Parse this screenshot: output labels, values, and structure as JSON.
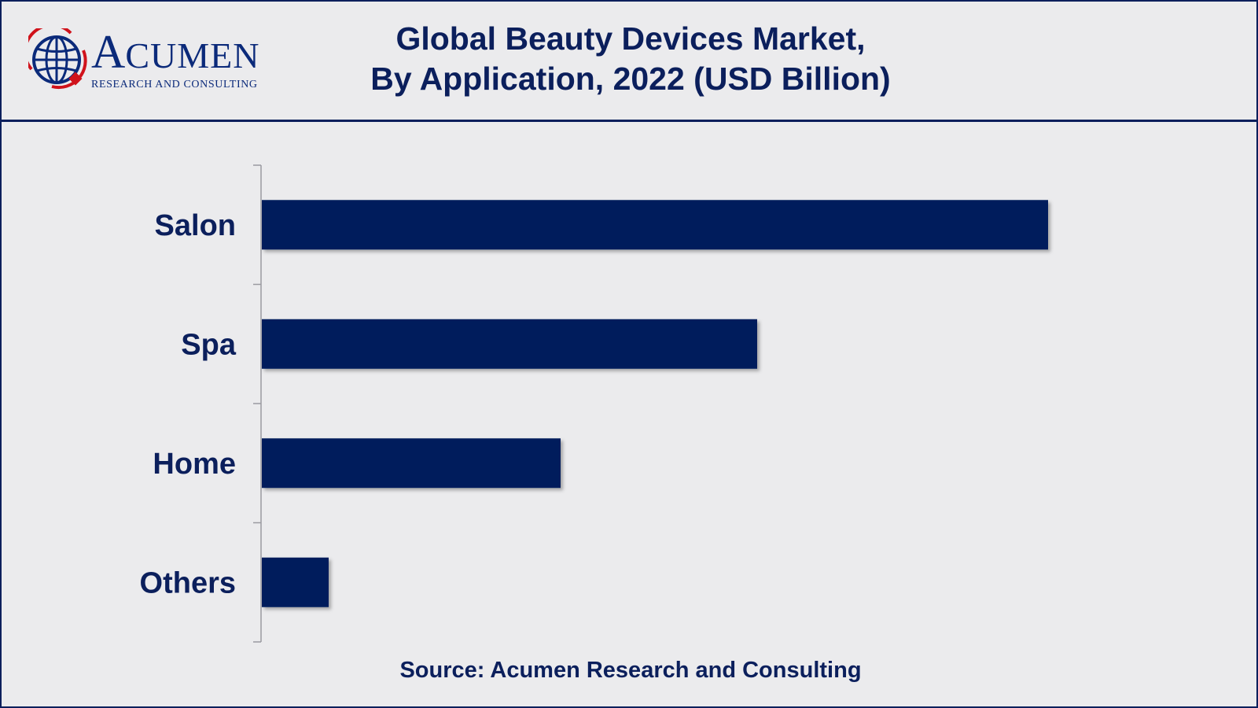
{
  "header": {
    "logo_word": "ACUMEN",
    "logo_sub": "RESEARCH AND CONSULTING",
    "title_line1": "Global Beauty Devices Market,",
    "title_line2": "By Application, 2022 (USD Billion)"
  },
  "colors": {
    "bar": "#031f5c",
    "text": "#0b1f5c",
    "axis": "#9a9aa0",
    "logo_red": "#d0121b"
  },
  "chart_data": {
    "type": "bar",
    "orientation": "horizontal",
    "title": "Global Beauty Devices Market, By Application, 2022 (USD Billion)",
    "categories": [
      "Salon",
      "Spa",
      "Home",
      "Others"
    ],
    "values": [
      100,
      63,
      38,
      8.5
    ],
    "value_note": "Relative bar lengths; no value axis or data labels are shown",
    "xlim": [
      0,
      100
    ],
    "xlabel": "",
    "ylabel": "",
    "grid": false,
    "legend": "none"
  },
  "source": "Source: Acumen Research and Consulting"
}
